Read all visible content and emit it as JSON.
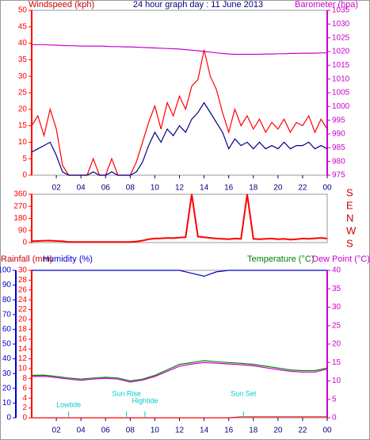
{
  "chart_data": [
    {
      "type": "line",
      "title": "24 hour graph day : 11 June 2013",
      "y_label": "Windspeed (kph)",
      "y2_label": "Barometer (hpa)",
      "x": [
        0,
        0.5,
        1,
        1.5,
        2,
        2.5,
        3,
        3.5,
        4,
        4.5,
        5,
        5.5,
        6,
        6.5,
        7,
        7.5,
        8,
        8.5,
        9,
        9.5,
        10,
        10.5,
        11,
        11.5,
        12,
        12.5,
        13,
        13.5,
        14,
        14.5,
        15,
        15.5,
        16,
        16.5,
        17,
        17.5,
        18,
        18.5,
        19,
        19.5,
        20,
        20.5,
        21,
        21.5,
        22,
        22.5,
        23,
        23.5,
        24
      ],
      "xlim": [
        0,
        24
      ],
      "xticks": [
        {
          "value": 2,
          "label": "02"
        },
        {
          "value": 4,
          "label": "04"
        },
        {
          "value": 6,
          "label": "06"
        },
        {
          "value": 8,
          "label": "08"
        },
        10,
        12,
        14,
        16,
        18,
        20,
        22,
        {
          "value": 24,
          "label": "00"
        }
      ],
      "ylim": [
        0,
        50
      ],
      "yticks": [
        0,
        5,
        10,
        15,
        20,
        25,
        30,
        35,
        40,
        45,
        50
      ],
      "y2lim": [
        975,
        1035
      ],
      "y2ticks": [
        975,
        980,
        985,
        990,
        995,
        1000,
        1005,
        1010,
        1015,
        1020,
        1025,
        1030,
        1035
      ],
      "series": [
        {
          "color": "#ff0000",
          "values": [
            15,
            18,
            12,
            20,
            14,
            3,
            0,
            0,
            0,
            0,
            5,
            0,
            0,
            5,
            0,
            0,
            0,
            4,
            10,
            16,
            21,
            14,
            22,
            18,
            24,
            20,
            27,
            29,
            38,
            30,
            26,
            19,
            13,
            20,
            15,
            18,
            14,
            17,
            13,
            16,
            14,
            17,
            13,
            16,
            15,
            18,
            13,
            17,
            14
          ]
        },
        {
          "color": "#00008b",
          "values": [
            7,
            8,
            9,
            10,
            6,
            1,
            0,
            0,
            0,
            0,
            1,
            0,
            0,
            1,
            0,
            0,
            0,
            1,
            4,
            9,
            13,
            10,
            14,
            12,
            15,
            13,
            17,
            19,
            22,
            19,
            16,
            13,
            8,
            11,
            9,
            10,
            8,
            10,
            8,
            9,
            8,
            10,
            8,
            9,
            9,
            10,
            8,
            9,
            8
          ]
        },
        {
          "color": "#cc00cc",
          "axis": "y2",
          "values": [
            1022.5,
            1022.5,
            1022.5,
            1022.4,
            1022.3,
            1022.2,
            1022.1,
            1022.1,
            1022,
            1022,
            1022,
            1022,
            1021.9,
            1021.8,
            1021.8,
            1021.7,
            1021.7,
            1021.6,
            1021.5,
            1021.4,
            1021.3,
            1021.2,
            1021.1,
            1021,
            1020.9,
            1020.7,
            1020.5,
            1020.3,
            1020,
            1019.8,
            1019.5,
            1019.3,
            1019.1,
            1019,
            1019,
            1019,
            1019,
            1019,
            1019.1,
            1019.1,
            1019.2,
            1019.2,
            1019.3,
            1019.3,
            1019.4,
            1019.4,
            1019.4,
            1019.5,
            1019.5
          ]
        }
      ]
    },
    {
      "type": "line",
      "x": [
        0,
        0.5,
        1,
        1.5,
        2,
        2.5,
        3,
        3.5,
        4,
        4.5,
        5,
        5.5,
        6,
        6.5,
        7,
        7.5,
        8,
        8.5,
        9,
        9.5,
        10,
        10.5,
        11,
        11.5,
        12,
        12.5,
        13,
        13.5,
        14,
        14.5,
        15,
        15.5,
        16,
        16.5,
        17,
        17.5,
        18,
        18.5,
        19,
        19.5,
        20,
        20.5,
        21,
        21.5,
        22,
        22.5,
        23,
        23.5,
        24
      ],
      "xlim": [
        0,
        24
      ],
      "ylim": [
        0,
        360
      ],
      "yticks": [
        0,
        90,
        180,
        270,
        360
      ],
      "direction_labels": [
        "S",
        "E",
        "N",
        "W",
        "S"
      ],
      "series": [
        {
          "color": "#ff0000",
          "values": [
            10,
            12,
            14,
            15,
            12,
            10,
            5,
            5,
            5,
            5,
            5,
            5,
            5,
            5,
            5,
            5,
            5,
            8,
            15,
            25,
            30,
            32,
            35,
            33,
            38,
            40,
            360,
            45,
            40,
            35,
            30,
            28,
            25,
            30,
            28,
            360,
            28,
            25,
            28,
            30,
            25,
            28,
            22,
            25,
            30,
            28,
            32,
            35,
            30
          ]
        }
      ]
    },
    {
      "type": "line",
      "rain_label": "Rainfall (mm)",
      "humidity_label": "Humidity (%)",
      "temperature_label": "Temperature (°C)",
      "dewpoint_label": "Dew Point (°C)",
      "x": [
        0,
        1,
        2,
        3,
        4,
        5,
        6,
        7,
        8,
        9,
        10,
        11,
        12,
        13,
        14,
        15,
        16,
        17,
        18,
        19,
        20,
        21,
        22,
        23,
        24
      ],
      "xlim": [
        0,
        24
      ],
      "xticks": [
        {
          "value": 2,
          "label": "02"
        },
        {
          "value": 4,
          "label": "04"
        },
        {
          "value": 6,
          "label": "06"
        },
        {
          "value": 8,
          "label": "08"
        },
        10,
        12,
        14,
        16,
        18,
        20,
        22,
        {
          "value": 24,
          "label": "00"
        }
      ],
      "ylim": [
        0,
        30
      ],
      "yticks": [
        0,
        2,
        4,
        6,
        8,
        10,
        12,
        14,
        16,
        18,
        20,
        22,
        24,
        26,
        28,
        30
      ],
      "y2lim": [
        0,
        40
      ],
      "y2ticks": [
        0,
        5,
        10,
        15,
        20,
        25,
        30,
        35,
        40
      ],
      "y3lim": [
        0,
        100
      ],
      "y3ticks": [
        0,
        10,
        20,
        30,
        40,
        50,
        60,
        70,
        80,
        90,
        100
      ],
      "series": [
        {
          "color": "#0000cc",
          "axis": "y3",
          "values": [
            100,
            100,
            100,
            100,
            100,
            100,
            100,
            100,
            100,
            100,
            100,
            100,
            100,
            98,
            96,
            99,
            100,
            100,
            100,
            100,
            100,
            100,
            100,
            100,
            100
          ]
        },
        {
          "color": "#cc00cc",
          "axis": "y2",
          "values": [
            11.2,
            11.3,
            10.9,
            10.5,
            10.2,
            10.5,
            10.7,
            10.5,
            9.7,
            10.2,
            11.2,
            12.6,
            14,
            14.6,
            15,
            14.8,
            14.6,
            14.4,
            14.1,
            13.6,
            13.1,
            12.6,
            12.4,
            12.4,
            13.2
          ]
        },
        {
          "color": "#008000",
          "axis": "y2",
          "values": [
            11.5,
            11.6,
            11.2,
            10.8,
            10.5,
            10.8,
            11,
            10.8,
            10,
            10.5,
            11.5,
            13,
            14.5,
            15,
            15.5,
            15.2,
            15,
            14.8,
            14.5,
            14,
            13.5,
            13,
            12.8,
            12.8,
            13.5
          ]
        },
        {
          "color": "#ff0000",
          "values": [
            0,
            0,
            0,
            0,
            0,
            0,
            0,
            0,
            0,
            0,
            0,
            0,
            0,
            0,
            0,
            0,
            0,
            0.2,
            0.2,
            0.2,
            0.2,
            0.2,
            0.2,
            0.2,
            0.2
          ]
        }
      ],
      "annotations": [
        {
          "text": "Lowtide",
          "x": 3.0
        },
        {
          "text": "Sun Rise",
          "x": 7.7
        },
        {
          "text": "Hightide",
          "x": 9.2
        },
        {
          "text": "Sun Set",
          "x": 17.2
        }
      ]
    }
  ]
}
